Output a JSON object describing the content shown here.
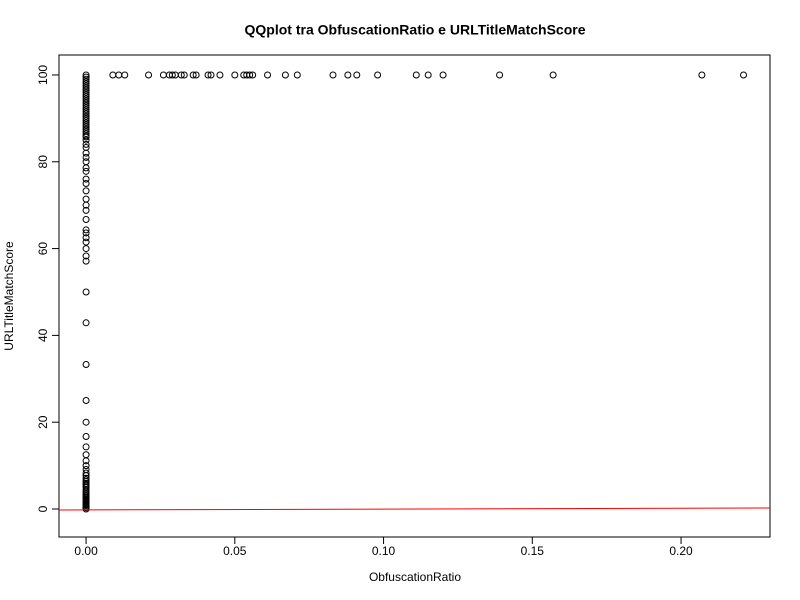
{
  "chart_data": {
    "type": "scatter",
    "title": "QQplot tra ObfuscationRatio e URLTitleMatchScore",
    "x_label": "ObfuscationRatio",
    "y_label": "URLTitleMatchScore",
    "xlim": [
      -0.0091,
      0.2299
    ],
    "ylim": [
      -6.45,
      104.6
    ],
    "xticks": [
      {
        "value": 0,
        "label": "0.00"
      },
      0.05,
      {
        "value": 0.1,
        "label": "0.10"
      },
      0.15,
      {
        "value": 0.2,
        "label": "0.20"
      }
    ],
    "yticks": [
      0,
      20,
      40,
      60,
      80,
      100
    ],
    "grid": false,
    "series": [
      {
        "color": "#000000",
        "x": [
          0,
          0,
          0,
          0,
          0,
          0,
          0,
          0,
          0,
          0,
          0,
          0,
          0,
          0,
          0,
          0,
          0,
          0,
          0,
          0,
          0,
          0,
          0,
          0,
          0,
          0,
          0,
          0,
          0,
          0,
          0,
          0,
          0,
          0,
          0,
          0,
          0,
          0,
          0,
          0,
          0,
          0,
          0,
          0,
          0,
          0,
          0,
          0,
          0,
          0,
          0,
          0,
          0,
          0,
          0,
          0,
          0,
          0,
          0,
          0,
          0,
          0,
          0,
          0,
          0,
          0,
          0,
          0,
          0,
          0,
          0,
          0,
          0,
          0,
          0,
          0,
          0,
          0,
          0,
          0,
          0,
          0,
          0,
          0,
          0,
          0,
          0,
          0,
          0,
          0.009,
          0.011,
          0.013,
          0.021,
          0.026,
          0.028,
          0.029,
          0.03,
          0.032,
          0.033,
          0.036,
          0.037,
          0.041,
          0.042,
          0.045,
          0.05,
          0.053,
          0.054,
          0.055,
          0.056,
          0.061,
          0.067,
          0.071,
          0.083,
          0.088,
          0.091,
          0.098,
          0.111,
          0.115,
          0.12,
          0.139,
          0.157,
          0.207,
          0.221
        ],
        "values": [
          100,
          99.5,
          99,
          98.5,
          98,
          97.5,
          97,
          96.5,
          96,
          95.5,
          95,
          94.5,
          94,
          93.5,
          93,
          92.5,
          92,
          91.5,
          91,
          90.5,
          90,
          89.5,
          89,
          88.5,
          88,
          87.5,
          87,
          86.5,
          86,
          85.7,
          85,
          84,
          83.3,
          82,
          81,
          80,
          78.6,
          77.8,
          76,
          75,
          73.3,
          71.4,
          70,
          68.8,
          66.7,
          64.3,
          63.6,
          62.5,
          61.5,
          60,
          58.3,
          57.1,
          50,
          42.9,
          33.3,
          25,
          20,
          16.7,
          14.3,
          12.5,
          11.1,
          10,
          9.1,
          8.3,
          7.7,
          7.1,
          6.7,
          6.3,
          5.9,
          5.6,
          5.3,
          5,
          4.5,
          4,
          3.6,
          3.3,
          3,
          2.7,
          2.5,
          2.2,
          2,
          1.8,
          1.5,
          1.2,
          1,
          0.8,
          0.5,
          0.3,
          0,
          100,
          100,
          100,
          100,
          100,
          100,
          100,
          100,
          100,
          100,
          100,
          100,
          100,
          100,
          100,
          100,
          100,
          100,
          100,
          100,
          100,
          100,
          100,
          100,
          100,
          100,
          100,
          100,
          100,
          100,
          100,
          100,
          100,
          100
        ]
      }
    ],
    "fit_line": {
      "color": "#ff0000",
      "x": [
        -0.0091,
        0.2299
      ],
      "values": [
        -0.23,
        0.23
      ]
    }
  }
}
